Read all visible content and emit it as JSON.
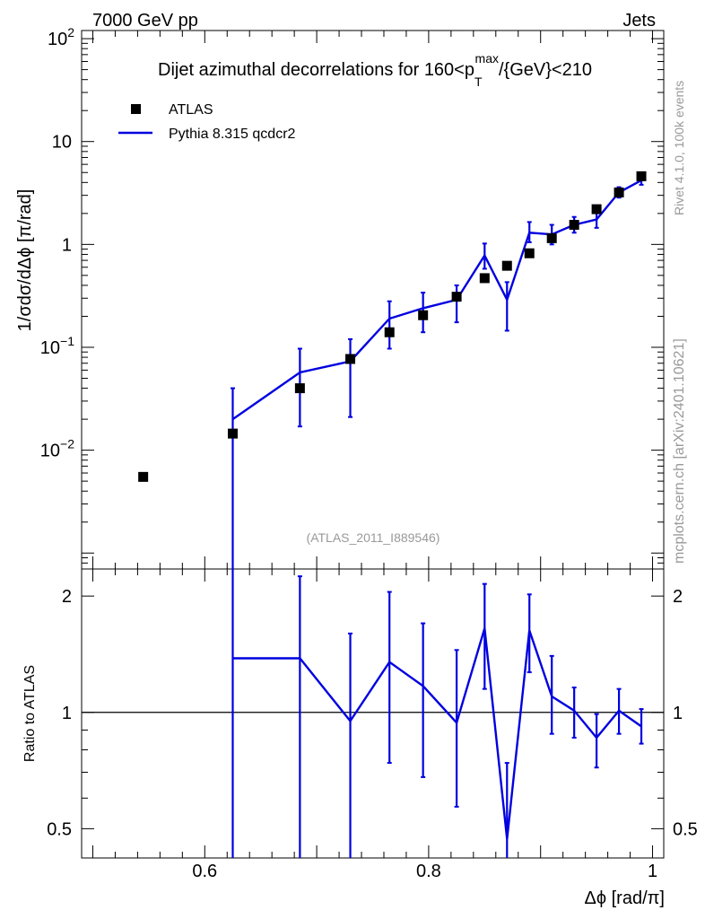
{
  "header": {
    "left": "7000 GeV pp",
    "right": "Jets"
  },
  "side_labels": {
    "top": "Rivet 4.1.0,  100k events",
    "bottom": "mcplots.cern.ch [arXiv:2401.10621]"
  },
  "colors": {
    "mc": "#0000e0",
    "data": "#000000",
    "watermark": "#999999"
  },
  "chart_data": [
    {
      "type": "scatter",
      "panel": "main",
      "title_parts": [
        "Dijet azimuthal decorrelations for 160<p",
        "T",
        "max",
        "/{GeV}<210"
      ],
      "ylabel": "1/σdσ/dΔϕ [π/rad]",
      "yscale": "log",
      "ylim": [
        0.0007,
        120
      ],
      "xlim": [
        0.49,
        1.01
      ],
      "y_ticks": [
        {
          "value": 0.01,
          "base": "10",
          "exp": "−2"
        },
        {
          "value": 0.1,
          "base": "10",
          "exp": "−1"
        },
        {
          "value": 1,
          "base": "1",
          "exp": ""
        },
        {
          "value": 10,
          "base": "10",
          "exp": ""
        },
        {
          "value": 100,
          "base": "10",
          "exp": "2"
        }
      ],
      "legend": [
        {
          "label": "ATLAS",
          "kind": "marker"
        },
        {
          "label": "Pythia 8.315 qcdcr2",
          "kind": "line"
        }
      ],
      "watermark": "(ATLAS_2011_I889546)",
      "series": [
        {
          "name": "ATLAS",
          "x": [
            0.545,
            0.625,
            0.685,
            0.73,
            0.765,
            0.795,
            0.825,
            0.85,
            0.87,
            0.89,
            0.91,
            0.93,
            0.95,
            0.97,
            0.99
          ],
          "y": [
            0.0055,
            0.0145,
            0.04,
            0.077,
            0.14,
            0.205,
            0.31,
            0.47,
            0.62,
            0.82,
            1.15,
            1.55,
            2.2,
            3.2,
            4.6
          ]
        },
        {
          "name": "Pythia 8.315 qcdcr2",
          "bin_edges": [
            0.625,
            0.685,
            0.73,
            0.765,
            0.795,
            0.825,
            0.85,
            0.87,
            0.89,
            0.91,
            0.93,
            0.95,
            0.97,
            0.99
          ],
          "x": [
            0.625,
            0.685,
            0.73,
            0.765,
            0.795,
            0.825,
            0.85,
            0.87,
            0.89,
            0.91,
            0.93,
            0.95,
            0.97,
            0.99
          ],
          "y": [
            0.02,
            0.057,
            0.073,
            0.19,
            0.24,
            0.29,
            0.78,
            0.29,
            1.3,
            1.25,
            1.55,
            1.75,
            3.2,
            4.2
          ],
          "err_low": [
            0.0004,
            0.017,
            0.021,
            0.097,
            0.14,
            0.175,
            0.58,
            0.145,
            1.05,
            1.0,
            1.3,
            1.45,
            2.85,
            3.8
          ],
          "err_high": [
            0.04,
            0.097,
            0.12,
            0.28,
            0.34,
            0.4,
            1.02,
            0.43,
            1.65,
            1.55,
            1.85,
            2.1,
            3.6,
            4.7
          ]
        }
      ]
    },
    {
      "type": "line",
      "panel": "ratio",
      "ylabel": "Ratio to ATLAS",
      "xlabel": "Δϕ [rad/π]",
      "ylim": [
        0.42,
        2.35
      ],
      "xlim": [
        0.49,
        1.01
      ],
      "x_ticks": [
        "0.6",
        "0.8",
        "1"
      ],
      "x_tick_values": [
        0.6,
        0.8,
        1.0
      ],
      "y_ticks": [
        "0.5",
        "1",
        "2"
      ],
      "y_tick_values": [
        0.5,
        1,
        2
      ],
      "reference": 1,
      "series": [
        {
          "name": "Pythia 8.315 qcdcr2",
          "x": [
            0.625,
            0.685,
            0.73,
            0.765,
            0.795,
            0.825,
            0.85,
            0.87,
            0.89,
            0.91,
            0.93,
            0.95,
            0.97,
            0.99
          ],
          "y": [
            1.38,
            1.38,
            0.95,
            1.35,
            1.17,
            0.94,
            1.65,
            0.47,
            1.63,
            1.1,
            1.01,
            0.86,
            1.01,
            0.92
          ],
          "err_low": [
            0.3,
            0.37,
            0.3,
            0.74,
            0.68,
            0.57,
            1.15,
            0.3,
            1.27,
            0.88,
            0.86,
            0.72,
            0.88,
            0.83
          ],
          "err_high": [
            3,
            2.25,
            1.6,
            2.05,
            1.7,
            1.45,
            2.15,
            0.74,
            2.02,
            1.4,
            1.16,
            0.99,
            1.15,
            1.02
          ]
        }
      ]
    }
  ]
}
